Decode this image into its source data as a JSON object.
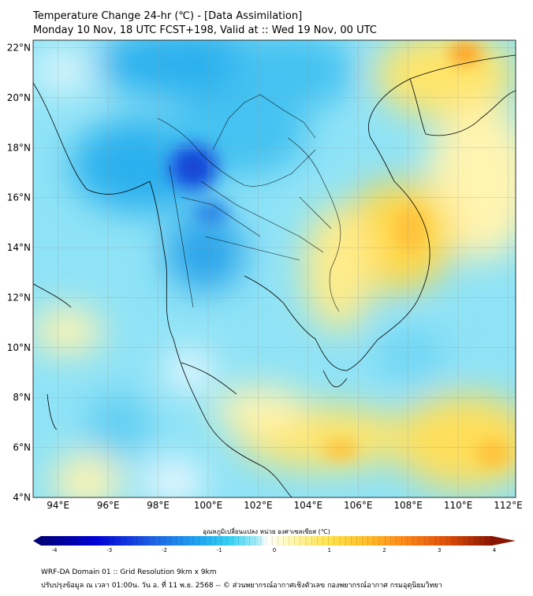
{
  "header": {
    "title": "Temperature Change 24-hr (℃) - [Data Assimilation]",
    "subtitle": "Monday 10 Nov, 18 UTC FCST+198, Valid at :: Wed 19 Nov, 00 UTC"
  },
  "map": {
    "lat_ticks": [
      "22°N",
      "20°N",
      "18°N",
      "16°N",
      "14°N",
      "12°N",
      "10°N",
      "8°N",
      "6°N",
      "4°N"
    ],
    "lon_ticks": [
      "94°E",
      "96°E",
      "98°E",
      "100°E",
      "102°E",
      "104°E",
      "106°E",
      "108°E",
      "110°E",
      "112°E"
    ],
    "lat_range": [
      4,
      22.3
    ],
    "lon_range": [
      93,
      112.3
    ],
    "grid": true
  },
  "colorbar": {
    "label": "อุณหภูมิเปลี่ยนแปลง หน่วย องศาเซลเซียส (℃)",
    "ticks": [
      "-4",
      "-3",
      "-2",
      "-1",
      "0",
      "1",
      "2",
      "3",
      "4"
    ],
    "range": [
      -4,
      4
    ],
    "colors": [
      "#00007a",
      "#0000d8",
      "#1f64e6",
      "#1fa7f0",
      "#38d3f5",
      "#a8ecf7",
      "#ffffff",
      "#fff6a8",
      "#ffe24a",
      "#ffbf2a",
      "#ff8c1a",
      "#e0500a",
      "#8a1500"
    ]
  },
  "footer": {
    "line1": "WRF-DA Domain 01 :: Grid Resolution 9km x 9km",
    "line2": "ปรับปรุงข้อมูล ณ เวลา 01:00น. วัน อ. ที่ 11 พ.ย. 2568 -- © ส่วนพยากรณ์อากาศเชิงตัวเลข กองพยากรณ์อากาศ กรมอุตุนิยมวิทยา"
  }
}
